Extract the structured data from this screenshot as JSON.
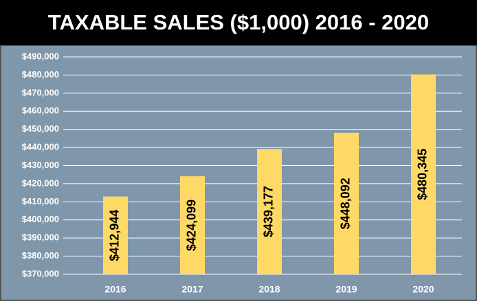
{
  "chart_data": {
    "type": "bar",
    "title": "TAXABLE SALES ($1,000) 2016 - 2020",
    "categories": [
      "2016",
      "2017",
      "2018",
      "2019",
      "2020"
    ],
    "values": [
      412944,
      424099,
      439177,
      448092,
      480345
    ],
    "value_labels": [
      "$412,944",
      "$424,099",
      "$439,177",
      "$448,092",
      "$480,345"
    ],
    "color": "#ffd966",
    "ylim": [
      370000,
      490000
    ],
    "yticks": [
      {
        "value": 370000,
        "label": "$370,000"
      },
      {
        "value": 380000,
        "label": "$380,000"
      },
      {
        "value": 390000,
        "label": "$390,000"
      },
      {
        "value": 400000,
        "label": "$400,000"
      },
      {
        "value": 410000,
        "label": "$410,000"
      },
      {
        "value": 420000,
        "label": "$420,000"
      },
      {
        "value": 430000,
        "label": "$430,000"
      },
      {
        "value": 440000,
        "label": "$440,000"
      },
      {
        "value": 450000,
        "label": "$450,000"
      },
      {
        "value": 460000,
        "label": "$460,000"
      },
      {
        "value": 470000,
        "label": "$470,000"
      },
      {
        "value": 480000,
        "label": "$480,000"
      },
      {
        "value": 490000,
        "label": "$490,000"
      }
    ],
    "grid": true
  }
}
